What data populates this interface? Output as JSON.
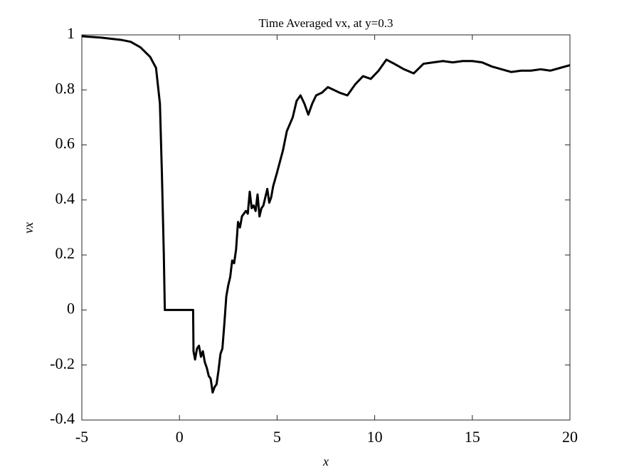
{
  "chart_data": {
    "type": "line",
    "title": "Time Averaged vx, at y=0.3",
    "xlabel": "x",
    "ylabel": "vx",
    "color": "#000000",
    "xlim": [
      -5,
      20
    ],
    "ylim": [
      -0.4,
      1
    ],
    "xticks": [
      -5,
      0,
      5,
      10,
      15,
      20
    ],
    "yticks": [
      -0.4,
      -0.2,
      0,
      0.2,
      0.4,
      0.6,
      0.8,
      1
    ],
    "x": [
      -5,
      -4,
      -3,
      -2.5,
      -2,
      -1.5,
      -1.2,
      -1.0,
      -0.9,
      -0.8,
      -0.75,
      0.7,
      0.72,
      0.8,
      0.9,
      1.0,
      1.1,
      1.2,
      1.3,
      1.4,
      1.5,
      1.6,
      1.7,
      1.8,
      1.9,
      2.0,
      2.1,
      2.2,
      2.3,
      2.4,
      2.5,
      2.6,
      2.7,
      2.8,
      2.9,
      3.0,
      3.1,
      3.2,
      3.3,
      3.4,
      3.5,
      3.6,
      3.7,
      3.8,
      3.9,
      4.0,
      4.1,
      4.2,
      4.3,
      4.5,
      4.6,
      4.7,
      4.8,
      5.0,
      5.3,
      5.5,
      5.8,
      6.0,
      6.2,
      6.4,
      6.6,
      6.8,
      7.0,
      7.3,
      7.6,
      7.9,
      8.2,
      8.6,
      9.0,
      9.4,
      9.8,
      10.2,
      10.6,
      11.0,
      11.5,
      12.0,
      12.5,
      13.0,
      13.5,
      14.0,
      14.5,
      15.0,
      15.5,
      16.0,
      16.5,
      17.0,
      17.5,
      18.0,
      18.5,
      19.0,
      19.5,
      20.0
    ],
    "values": [
      0.995,
      0.99,
      0.982,
      0.975,
      0.955,
      0.92,
      0.88,
      0.75,
      0.5,
      0.2,
      0,
      0,
      -0.15,
      -0.18,
      -0.14,
      -0.13,
      -0.17,
      -0.15,
      -0.19,
      -0.21,
      -0.24,
      -0.25,
      -0.3,
      -0.28,
      -0.27,
      -0.22,
      -0.16,
      -0.14,
      -0.05,
      0.05,
      0.09,
      0.12,
      0.18,
      0.17,
      0.22,
      0.32,
      0.3,
      0.34,
      0.35,
      0.36,
      0.35,
      0.43,
      0.37,
      0.38,
      0.36,
      0.42,
      0.34,
      0.37,
      0.38,
      0.44,
      0.39,
      0.41,
      0.45,
      0.5,
      0.58,
      0.65,
      0.7,
      0.76,
      0.78,
      0.75,
      0.71,
      0.75,
      0.78,
      0.79,
      0.81,
      0.8,
      0.79,
      0.78,
      0.82,
      0.85,
      0.84,
      0.87,
      0.91,
      0.895,
      0.875,
      0.86,
      0.895,
      0.9,
      0.905,
      0.9,
      0.905,
      0.905,
      0.9,
      0.885,
      0.875,
      0.865,
      0.87,
      0.87,
      0.875,
      0.87,
      0.88,
      0.89
    ]
  }
}
